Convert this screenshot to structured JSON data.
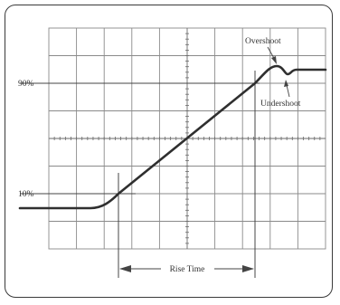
{
  "labels": {
    "level_90": "90%",
    "level_10": "10%",
    "overshoot": "Overshoot",
    "undershoot": "Undershoot",
    "rise_time": "Rise Time"
  },
  "colors": {
    "grid": "#8a8a8a",
    "trace": "#2f2f2f",
    "border": "#3a3a3a"
  }
}
